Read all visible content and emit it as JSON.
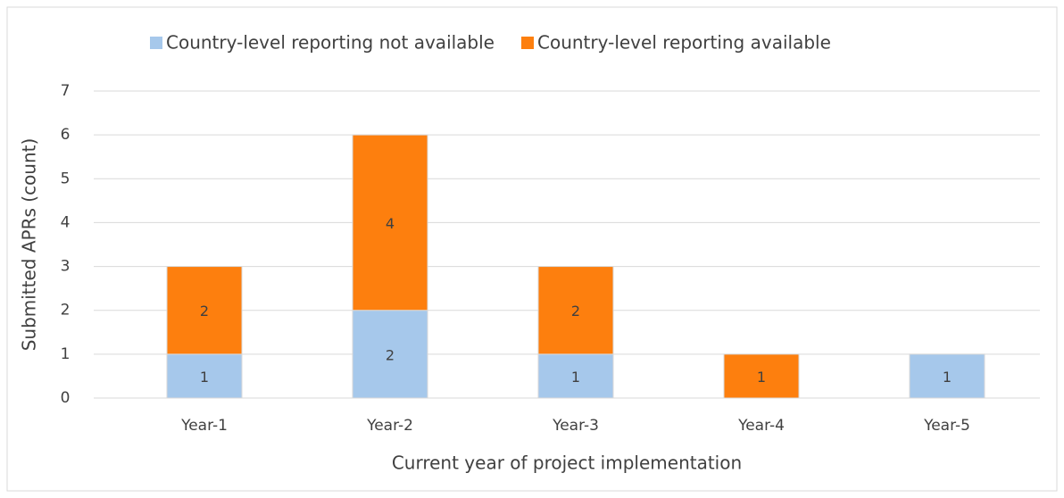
{
  "chart_data": {
    "type": "stacked_bar",
    "x_label": "Current year of project implementation",
    "y_label": "Submitted APRs (count)",
    "categories": [
      "Year-1",
      "Year-2",
      "Year-3",
      "Year-4",
      "Year-5"
    ],
    "series": [
      {
        "name": "Country-level reporting not available",
        "color": "#a6c8eb",
        "values": [
          1,
          2,
          1,
          0,
          1
        ]
      },
      {
        "name": "Country-level reporting available",
        "color": "#fd7f0e",
        "values": [
          2,
          4,
          2,
          1,
          0
        ]
      }
    ],
    "ylim": [
      0,
      7
    ],
    "yticks": [
      0,
      1,
      2,
      3,
      4,
      5,
      6,
      7
    ],
    "grid": true,
    "legend": "top"
  }
}
